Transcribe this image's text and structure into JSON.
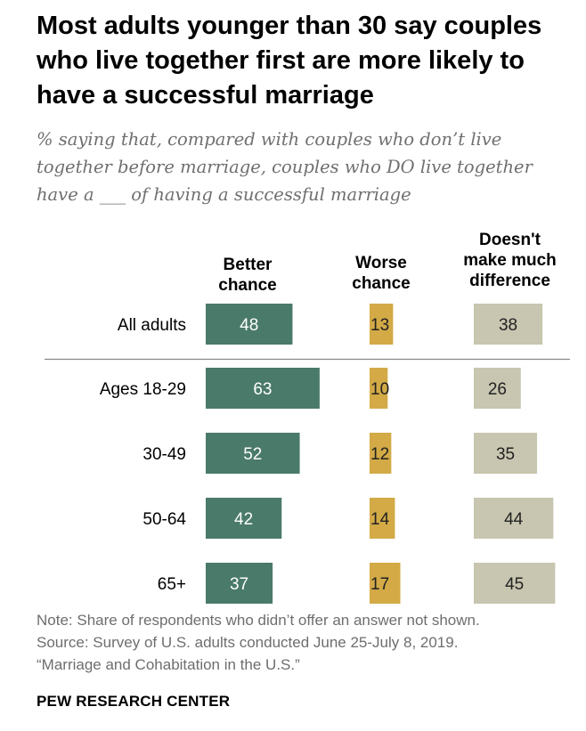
{
  "title": "Most adults younger than 30 say couples who live together first are more likely to have a successful marriage",
  "subtitle": "% saying that, compared with couples who don’t live\ntogether before marriage, couples who DO live together\nhave a ___ of having a successful marriage",
  "notes": [
    "Note: Share of respondents who didn’t offer an answer not shown.",
    "Source: Survey of U.S. adults conducted June 25-July 8, 2019.",
    "“Marriage and Cohabitation in the U.S.”"
  ],
  "source_brand": "PEW RESEARCH CENTER",
  "colors": {
    "better": "#4a7a6a",
    "worse": "#d3aa46",
    "no_difference": "#c8c5b0",
    "divider": "#888888"
  },
  "chart_data": {
    "type": "bar",
    "orientation": "horizontal",
    "categories": [
      "All adults",
      "Ages 18-29",
      "30-49",
      "50-64",
      "65+"
    ],
    "series": [
      {
        "name": "Better\nchance",
        "values": [
          48,
          63,
          52,
          42,
          37
        ]
      },
      {
        "name": "Worse\nchance",
        "values": [
          13,
          10,
          12,
          14,
          17
        ]
      },
      {
        "name": "Doesn't\nmake much\ndifference",
        "values": [
          38,
          26,
          35,
          44,
          45
        ]
      }
    ],
    "legend": "column headers above bars"
  }
}
